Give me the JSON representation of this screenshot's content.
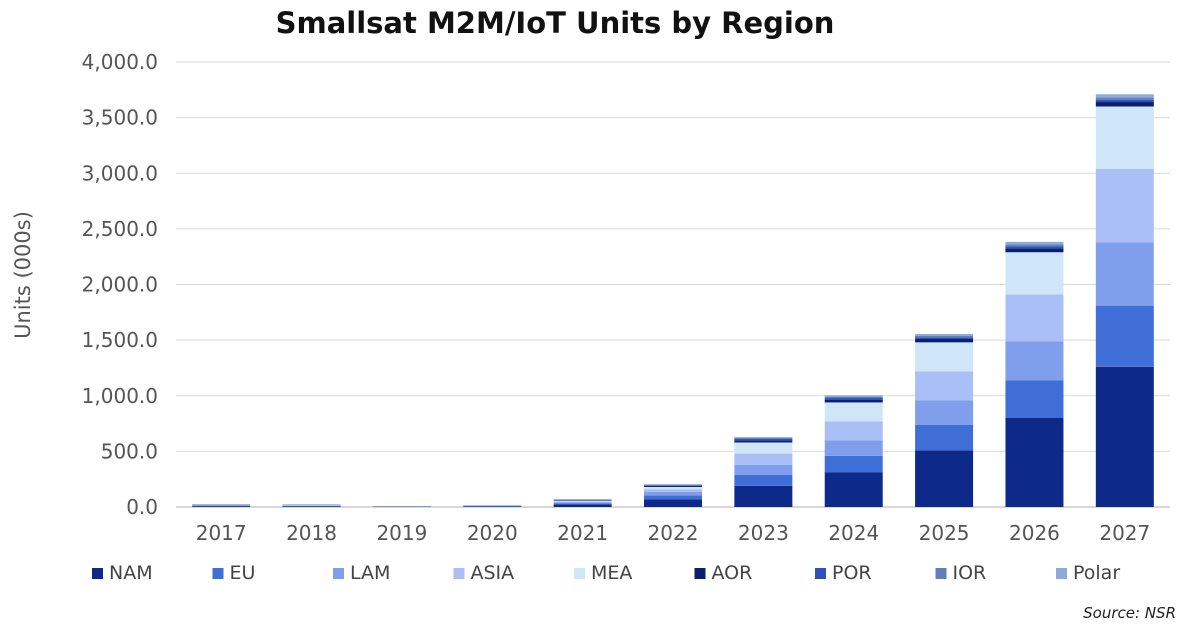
{
  "chart_data": {
    "type": "bar",
    "stacked": true,
    "title": "Smallsat M2M/IoT Units by Region",
    "xlabel": "",
    "ylabel": "Units  (000s)",
    "ylim": [
      0,
      4000
    ],
    "yticks": [
      "0.0",
      "500.0",
      "1,000.0",
      "1,500.0",
      "2,000.0",
      "2,500.0",
      "3,000.0",
      "3,500.0",
      "4,000.0"
    ],
    "grid": true,
    "legend_position": "bottom",
    "source": "Source: NSR",
    "categories": [
      "2017",
      "2018",
      "2019",
      "2020",
      "2021",
      "2022",
      "2023",
      "2024",
      "2025",
      "2026",
      "2027"
    ],
    "series": [
      {
        "name": "NAM",
        "color": "#0d2a8a",
        "values": [
          8,
          7,
          2,
          5,
          22,
          70,
          190,
          310,
          510,
          800,
          1260
        ]
      },
      {
        "name": "EU",
        "color": "#3f6fd6",
        "values": [
          5,
          4,
          1,
          3,
          12,
          35,
          100,
          150,
          230,
          340,
          550
        ]
      },
      {
        "name": "LAM",
        "color": "#7f9fec",
        "values": [
          3,
          3,
          1,
          2,
          8,
          30,
          90,
          140,
          220,
          350,
          570
        ]
      },
      {
        "name": "ASIA",
        "color": "#a9bff5",
        "values": [
          3,
          2,
          1,
          2,
          7,
          25,
          100,
          170,
          260,
          420,
          660
        ]
      },
      {
        "name": "MEA",
        "color": "#cfe6f9",
        "values": [
          3,
          2,
          1,
          2,
          8,
          20,
          100,
          170,
          260,
          380,
          560
        ]
      },
      {
        "name": "AOR",
        "color": "#0a1f6e",
        "values": [
          2,
          2,
          1,
          1,
          5,
          10,
          20,
          25,
          30,
          35,
          40
        ]
      },
      {
        "name": "POR",
        "color": "#2f52b8",
        "values": [
          1,
          1,
          1,
          1,
          3,
          6,
          12,
          15,
          15,
          18,
          20
        ]
      },
      {
        "name": "IOR",
        "color": "#5e7fb8",
        "values": [
          1,
          1,
          0,
          1,
          3,
          5,
          10,
          12,
          15,
          18,
          20
        ]
      },
      {
        "name": "Polar",
        "color": "#8eaad8",
        "values": [
          1,
          1,
          1,
          1,
          2,
          4,
          8,
          12,
          15,
          22,
          30
        ]
      }
    ]
  }
}
